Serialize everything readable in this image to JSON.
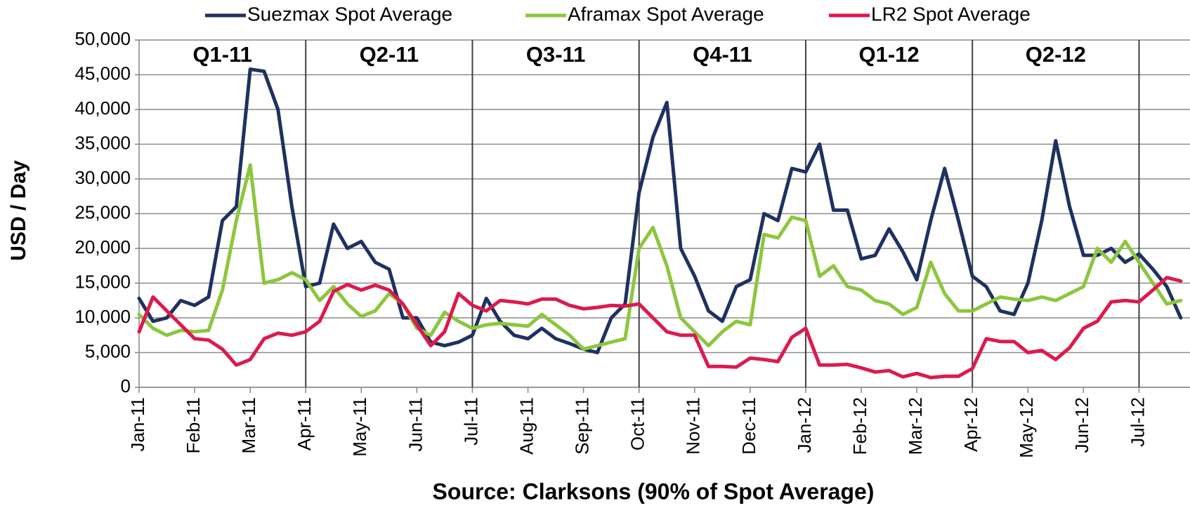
{
  "chart_data": {
    "type": "line",
    "y_label": "USD / Day",
    "x_label": "Source: Clarksons (90% of Spot Average)",
    "legend": "top",
    "grid": true,
    "quarters": [
      "Q1-11",
      "Q2-11",
      "Q3-11",
      "Q4-11",
      "Q1-12",
      "Q2-12"
    ],
    "categories": [
      "Jan-11",
      null,
      null,
      null,
      "Feb-11",
      null,
      null,
      null,
      "Mar-11",
      null,
      null,
      null,
      "Apr-11",
      null,
      null,
      null,
      "May-11",
      null,
      null,
      null,
      "Jun-11",
      null,
      null,
      null,
      "Jul-11",
      null,
      null,
      null,
      "Aug-11",
      null,
      null,
      null,
      "Sep-11",
      null,
      null,
      null,
      "Oct-11",
      null,
      null,
      null,
      "Nov-11",
      null,
      null,
      null,
      "Dec-11",
      null,
      null,
      null,
      "Jan-12",
      null,
      null,
      null,
      "Feb-12",
      null,
      null,
      null,
      "Mar-12",
      null,
      null,
      null,
      "Apr-12",
      null,
      null,
      null,
      "May-12",
      null,
      null,
      null,
      "Jun-12",
      null,
      null,
      null,
      "Jul-12",
      null,
      null,
      null
    ],
    "series": [
      {
        "name": "Suezmax Spot Average",
        "color": "#1f3160",
        "values": [
          12800,
          9500,
          10000,
          12500,
          11800,
          13000,
          24000,
          26000,
          45800,
          45500,
          40000,
          26000,
          14500,
          15000,
          23500,
          20000,
          21000,
          18000,
          17000,
          10000,
          10000,
          6500,
          6000,
          6500,
          7500,
          12800,
          9500,
          7500,
          7000,
          8500,
          7000,
          6300,
          5500,
          5000,
          10000,
          12000,
          28000,
          36000,
          41000,
          20000,
          16000,
          11000,
          9500,
          14500,
          15500,
          25000,
          24000,
          31500,
          31000,
          35000,
          25500,
          25500,
          18500,
          19000,
          22800,
          19500,
          15500,
          24000,
          31500,
          24000,
          16000,
          14500,
          11000,
          10500,
          15000,
          24000,
          35500,
          26000,
          19000,
          19000,
          20000,
          18000,
          19200,
          17000,
          14500,
          10000
        ]
      },
      {
        "name": "Aframax Spot Average",
        "color": "#8cc63e",
        "values": [
          10500,
          8500,
          7500,
          8200,
          8000,
          8200,
          14000,
          24000,
          32000,
          15000,
          15500,
          16500,
          15500,
          12500,
          14500,
          12000,
          10200,
          11000,
          13500,
          12000,
          8500,
          7500,
          10800,
          9500,
          8500,
          9000,
          9200,
          9000,
          8800,
          10500,
          9000,
          7500,
          5500,
          6000,
          6500,
          7000,
          20000,
          23000,
          17500,
          10000,
          8000,
          6000,
          8000,
          9500,
          9000,
          22000,
          21500,
          24500,
          24000,
          16000,
          17500,
          14500,
          14000,
          12500,
          12000,
          10500,
          11500,
          18000,
          13500,
          11000,
          11000,
          12000,
          13000,
          12700,
          12500,
          13000,
          12500,
          13500,
          14500,
          20000,
          18000,
          21000,
          18000,
          15000,
          12000,
          12500
        ]
      },
      {
        "name": "LR2 Spot Average",
        "color": "#dc1a4e",
        "values": [
          8000,
          13000,
          11000,
          9000,
          7000,
          6800,
          5500,
          3200,
          4000,
          7000,
          7800,
          7500,
          8000,
          9500,
          13800,
          14800,
          14000,
          14700,
          14000,
          12000,
          9000,
          6000,
          8000,
          13500,
          11800,
          11000,
          12500,
          12300,
          12000,
          12700,
          12700,
          11800,
          11300,
          11500,
          11800,
          11700,
          12000,
          10000,
          8000,
          7500,
          7500,
          3000,
          3000,
          2900,
          4200,
          4000,
          3700,
          7200,
          8500,
          3200,
          3200,
          3300,
          2800,
          2200,
          2400,
          1500,
          2000,
          1400,
          1600,
          1600,
          2700,
          7000,
          6600,
          6600,
          5000,
          5300,
          4000,
          5700,
          8500,
          9500,
          12300,
          12500,
          12300,
          14000,
          15800,
          15300
        ]
      }
    ],
    "ylim": [
      0,
      50000
    ],
    "yticks": [
      0,
      {
        "value": 5000,
        "label": "5,000"
      },
      {
        "value": 10000,
        "label": "10,000"
      },
      {
        "value": 15000,
        "label": "15,000"
      },
      {
        "value": 20000,
        "label": "20,000"
      },
      {
        "value": 25000,
        "label": "25,000"
      },
      {
        "value": 30000,
        "label": "30,000"
      },
      {
        "value": 35000,
        "label": "35,000"
      },
      {
        "value": 40000,
        "label": "40,000"
      },
      {
        "value": 45000,
        "label": "45,000"
      },
      {
        "value": 50000,
        "label": "50,000"
      }
    ]
  }
}
